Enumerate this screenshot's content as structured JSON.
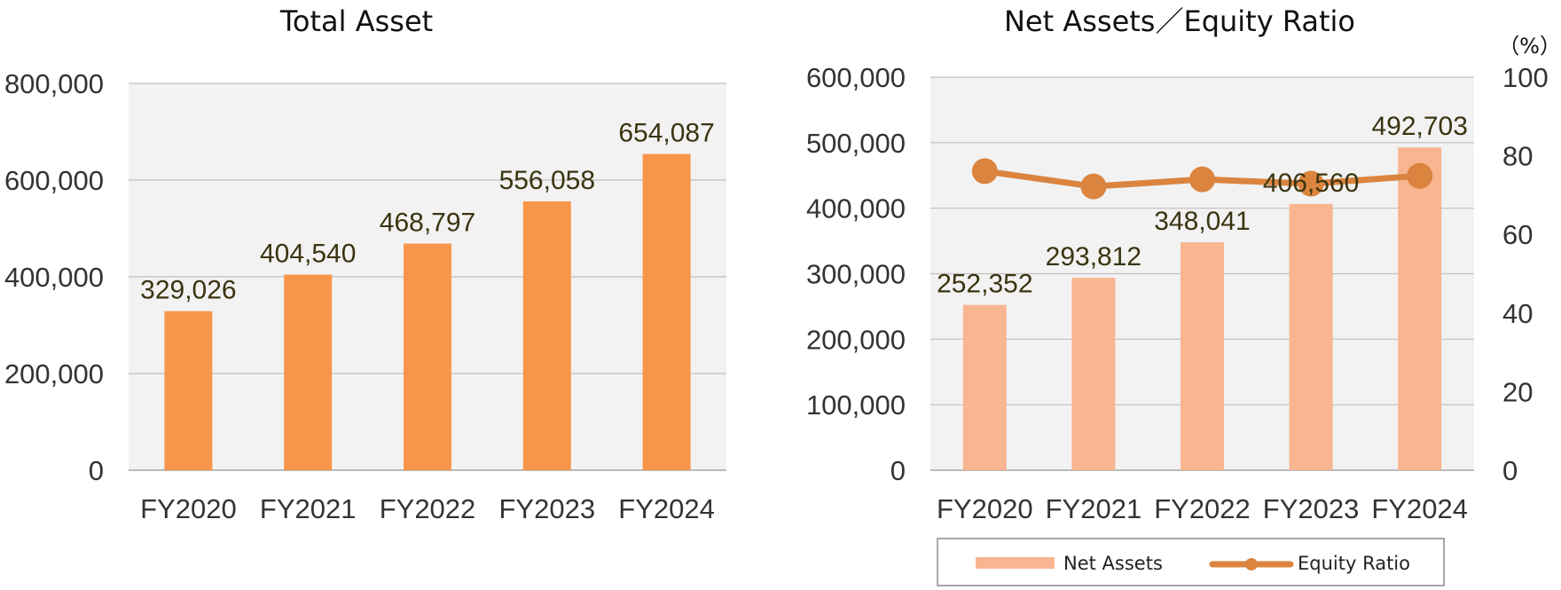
{
  "colors": {
    "plot_bg": "#F2F2F2",
    "grid": "#BFBFBF",
    "axis": "#A6A6A6",
    "total_bar": "#F7964A",
    "net_bar": "#F8B590",
    "ratio_line": "#DB843F"
  },
  "chart_data": [
    {
      "type": "bar",
      "title": "Total Asset",
      "categories": [
        "FY2020",
        "FY2021",
        "FY2022",
        "FY2023",
        "FY2024"
      ],
      "values": [
        329026,
        404540,
        468797,
        556058,
        654087
      ],
      "value_labels": [
        "329,026",
        "404,540",
        "468,797",
        "556,058",
        "654,087"
      ],
      "ylim": [
        0,
        800000
      ],
      "yticks": [
        0,
        200000,
        400000,
        600000,
        800000
      ],
      "ytick_labels": [
        "0",
        "200,000",
        "400,000",
        "600,000",
        "800,000"
      ],
      "xlabel": "",
      "ylabel": "",
      "grid": true,
      "legend": "none"
    },
    {
      "type": "bar+line",
      "title": "Net Assets／Equity Ratio",
      "categories": [
        "FY2020",
        "FY2021",
        "FY2022",
        "FY2023",
        "FY2024"
      ],
      "series": [
        {
          "name": "Net Assets",
          "type": "bar",
          "axis": "left",
          "values": [
            252352,
            293812,
            348041,
            406560,
            492703
          ],
          "value_labels": [
            "252,352",
            "293,812",
            "348,041",
            "406,560",
            "492,703"
          ]
        },
        {
          "name": "Equity Ratio",
          "type": "line",
          "axis": "right",
          "values": [
            76.1,
            72.2,
            74.0,
            72.9,
            74.9
          ]
        }
      ],
      "ylim": [
        0,
        600000
      ],
      "yticks": [
        0,
        100000,
        200000,
        300000,
        400000,
        500000,
        600000
      ],
      "ytick_labels": [
        "0",
        "100,000",
        "200,000",
        "300,000",
        "400,000",
        "500,000",
        "600,000"
      ],
      "y2lim": [
        0,
        100
      ],
      "y2ticks": [
        0,
        20,
        40,
        60,
        80,
        100
      ],
      "y2tick_labels": [
        "0",
        "20",
        "40",
        "60",
        "80",
        "100"
      ],
      "y2unit": "（%）",
      "grid": true,
      "legend": "bottom"
    }
  ]
}
